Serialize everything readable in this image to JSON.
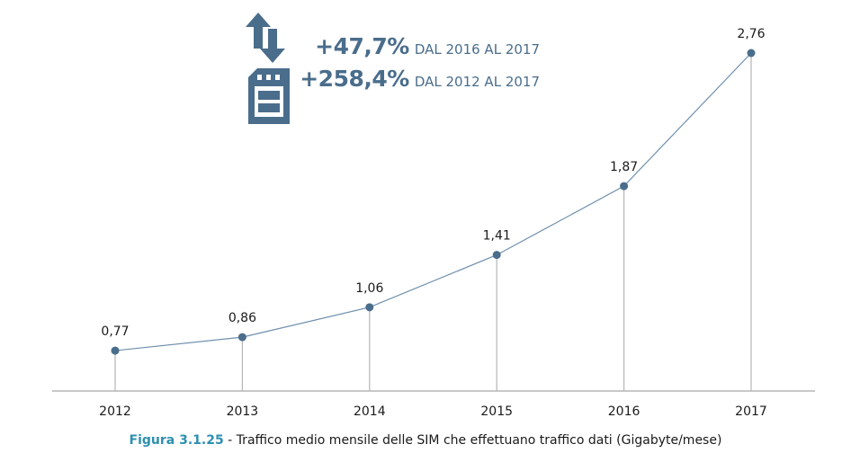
{
  "chart_data": {
    "type": "line",
    "title": "Traffico medio mensile delle SIM che effettuano traffico dati (Gigabyte/mese)",
    "xlabel": "",
    "ylabel": "",
    "categories": [
      "2012",
      "2013",
      "2014",
      "2015",
      "2016",
      "2017"
    ],
    "series": [
      {
        "name": "Traffico medio mensile (GB/mese)",
        "values": [
          0.77,
          0.86,
          1.06,
          1.41,
          1.87,
          2.76
        ]
      }
    ],
    "data_labels": [
      "0,77",
      "0,86",
      "1,06",
      "1,41",
      "1,87",
      "2,76"
    ],
    "ylim": [
      0.5,
      2.76
    ],
    "grid": false,
    "legend": "none",
    "drop_lines": true,
    "colors": {
      "line": "#6e8fae",
      "marker": "#4a6d8c",
      "drop_line": "#b5b5b5",
      "axis": "#c8c8c8"
    }
  },
  "highlights": [
    {
      "value": "+47,7%",
      "text": "DAL 2016 AL 2017"
    },
    {
      "value": "+258,4%",
      "text": "DAL 2012 AL 2017"
    }
  ],
  "icon": {
    "name": "data-traffic-sim-icon",
    "color": "#4a6d8c"
  },
  "caption": {
    "figure_label": "Figura 3.1.25",
    "separator": " - ",
    "text": "Traffico medio mensile delle SIM che effettuano traffico dati (Gigabyte/mese)",
    "figure_color": "#2e8fb0"
  }
}
